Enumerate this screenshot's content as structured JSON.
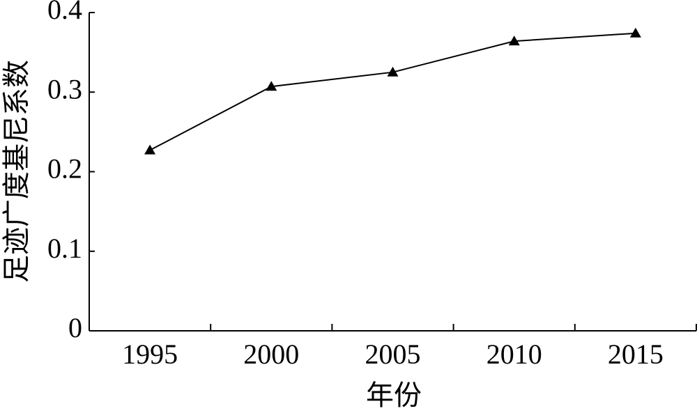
{
  "chart_data": {
    "type": "line",
    "x_label": "年份",
    "y_label": "足迹广度基尼系数",
    "categories": [
      "1995",
      "2000",
      "2005",
      "2010",
      "2015"
    ],
    "values": [
      0.227,
      0.307,
      0.325,
      0.364,
      0.374
    ],
    "color": "#000000",
    "ylim": [
      0,
      0.4
    ],
    "yticks": [
      0,
      0.1,
      0.2,
      0.3,
      0.4
    ],
    "grid": false
  }
}
